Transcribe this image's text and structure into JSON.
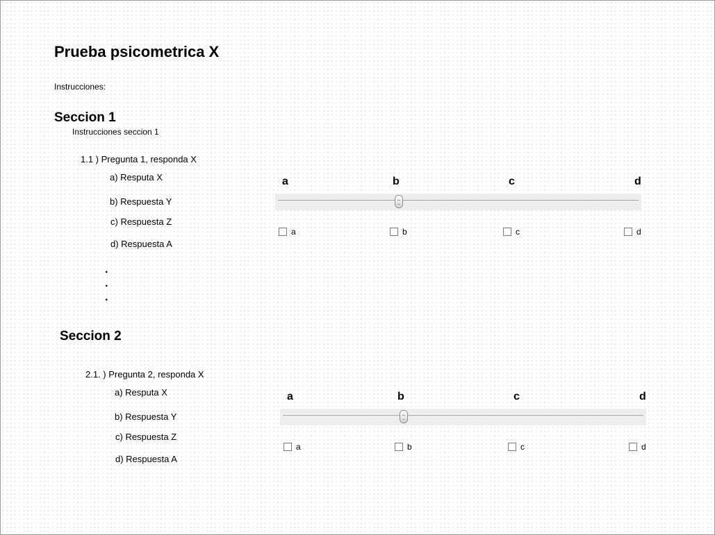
{
  "title": "Prueba psicometrica X",
  "instructions": "Instrucciones:",
  "sections": [
    {
      "heading": "Seccion 1",
      "instructions": "Instrucciones seccion 1",
      "question": "1.1 ) Pregunta 1, responda X",
      "answers": [
        "a) Resputa X",
        "b) Respuesta Y",
        "c) Respuesta Z",
        "d) Respuesta A"
      ],
      "ellipsis": [
        ".",
        ".",
        "."
      ],
      "scale_labels": [
        "a",
        "b",
        "c",
        "d"
      ],
      "slider_value": "b",
      "checkboxes": [
        {
          "label": "a",
          "checked": false
        },
        {
          "label": "b",
          "checked": false
        },
        {
          "label": "c",
          "checked": false
        },
        {
          "label": "d",
          "checked": false
        }
      ]
    },
    {
      "heading": "Seccion 2",
      "question": "2.1. ) Pregunta 2, responda X",
      "answers": [
        "a) Resputa X",
        "b) Respuesta Y",
        "c) Respuesta Z",
        "d) Respuesta A"
      ],
      "scale_labels": [
        "a",
        "b",
        "c",
        "d"
      ],
      "slider_value": "b",
      "checkboxes": [
        {
          "label": "a",
          "checked": false
        },
        {
          "label": "b",
          "checked": false
        },
        {
          "label": "c",
          "checked": false
        },
        {
          "label": "d",
          "checked": false
        }
      ]
    }
  ]
}
